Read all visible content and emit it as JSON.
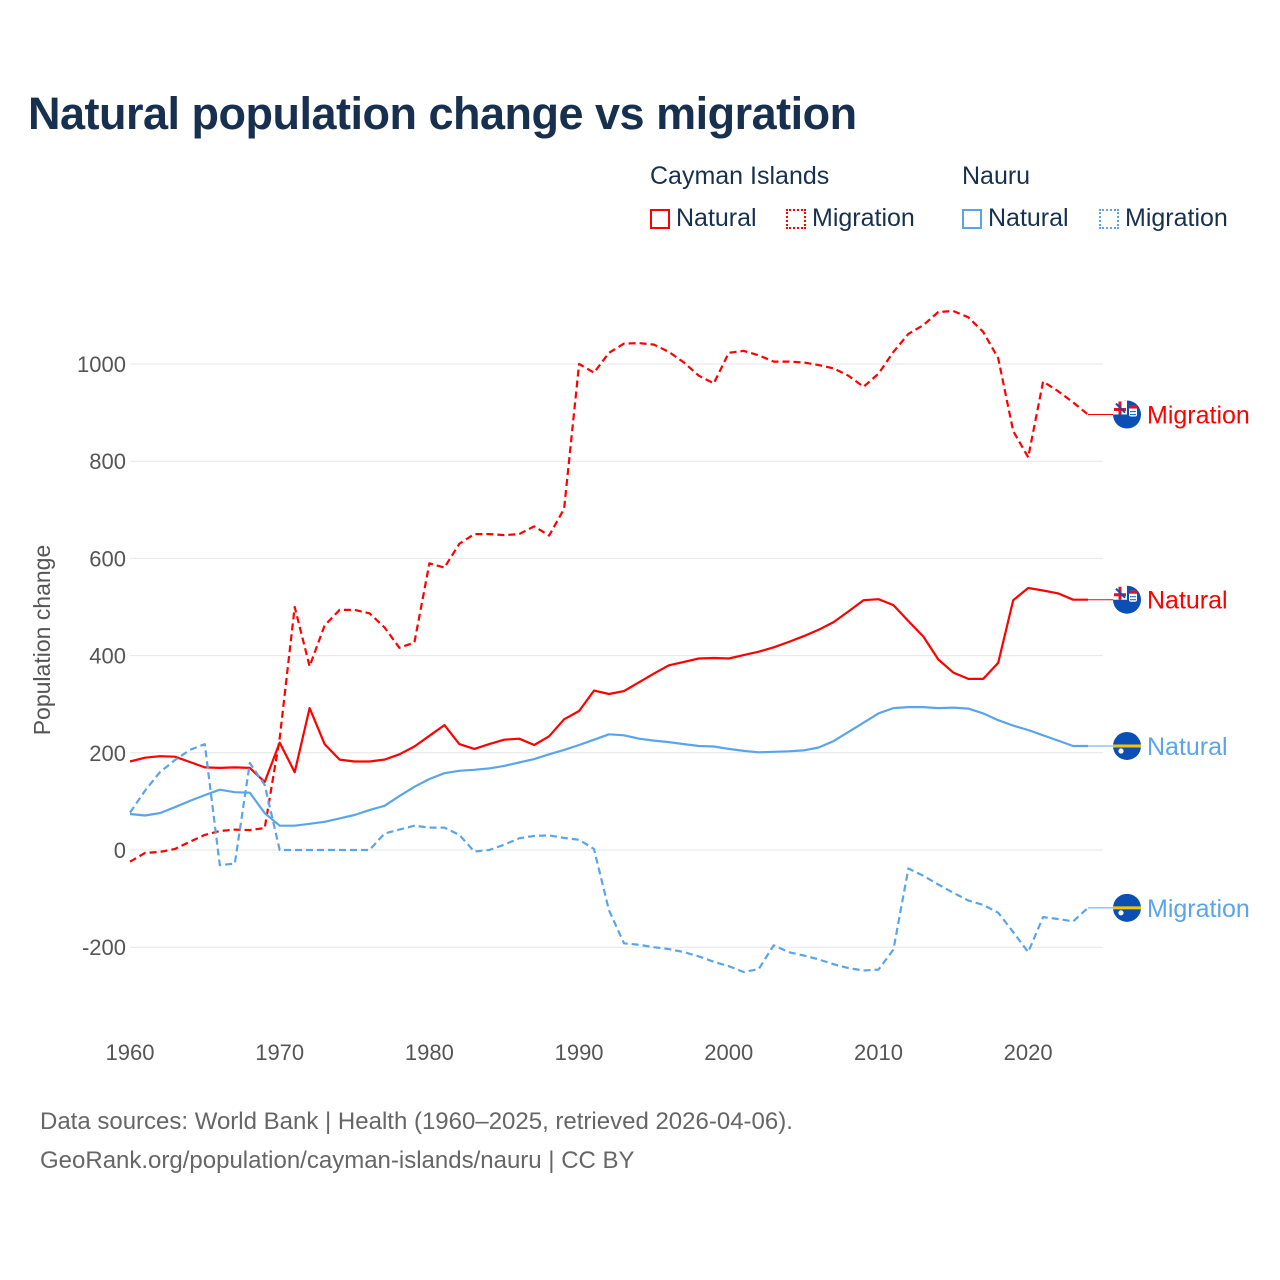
{
  "title": "Natural population change vs migration",
  "legend": {
    "groups": [
      {
        "country": "Cayman Islands",
        "items": [
          "Natural",
          "Migration"
        ],
        "color": "#ff0000"
      },
      {
        "country": "Nauru",
        "items": [
          "Natural",
          "Migration"
        ],
        "color": "#5aa5ea"
      }
    ]
  },
  "footer": {
    "line1": "Data sources: World Bank | Health (1960–2025, retrieved 2026-04-06).",
    "line2": "GeoRank.org/population/cayman-islands/nauru | CC BY"
  },
  "chart_data": {
    "type": "line",
    "title": "Natural population change vs migration",
    "xlabel": "",
    "ylabel": "Population change",
    "xlim": [
      1960,
      2025
    ],
    "ylim": [
      -300,
      1150
    ],
    "x_ticks": [
      1960,
      1970,
      1980,
      1990,
      2000,
      2010,
      2020
    ],
    "y_ticks": [
      -200,
      0,
      200,
      400,
      600,
      800,
      1000
    ],
    "grid": true,
    "x_start": 1960,
    "series": [
      {
        "name": "Cayman Islands Natural",
        "label": "Natural",
        "flag": "cayman-islands-flag-icon",
        "color": "#ff0000",
        "dashed": false,
        "values": [
          182,
          190,
          193,
          192,
          181,
          170,
          169,
          170,
          169,
          140,
          221,
          160,
          292,
          218,
          186,
          182,
          182,
          186,
          197,
          213,
          235,
          257,
          218,
          208,
          218,
          227,
          229,
          216,
          234,
          269,
          286,
          328,
          321,
          327,
          345,
          363,
          380,
          387,
          394,
          395,
          394,
          401,
          408,
          417,
          428,
          440,
          453,
          469,
          491,
          514,
          516,
          504,
          471,
          439,
          392,
          365,
          352,
          352,
          385,
          514,
          539,
          534,
          528,
          515,
          515
        ]
      },
      {
        "name": "Cayman Islands Migration",
        "label": "Migration",
        "flag": "cayman-islands-flag-icon",
        "color": "#ff0000",
        "dashed": true,
        "values": [
          -24,
          -6,
          -4,
          2,
          17,
          31,
          39,
          42,
          41,
          45,
          230,
          500,
          378,
          462,
          494,
          494,
          487,
          458,
          416,
          427,
          590,
          581,
          630,
          650,
          650,
          648,
          650,
          666,
          647,
          702,
          1000,
          982,
          1023,
          1042,
          1043,
          1040,
          1025,
          1003,
          976,
          960,
          1023,
          1027,
          1018,
          1005,
          1005,
          1003,
          998,
          991,
          976,
          953,
          980,
          1025,
          1062,
          1080,
          1107,
          1109,
          1096,
          1066,
          1012,
          862,
          808,
          964,
          944,
          921,
          896
        ]
      },
      {
        "name": "Nauru Natural",
        "label": "Natural",
        "flag": "nauru-flag-icon",
        "color": "#5aa5ea",
        "dashed": false,
        "values": [
          74,
          71,
          76,
          88,
          101,
          113,
          124,
          119,
          118,
          76,
          50,
          50,
          54,
          58,
          65,
          72,
          82,
          91,
          111,
          130,
          146,
          158,
          163,
          165,
          168,
          173,
          180,
          187,
          197,
          206,
          216,
          227,
          238,
          236,
          229,
          225,
          222,
          218,
          214,
          213,
          208,
          204,
          201,
          202,
          203,
          205,
          211,
          224,
          243,
          262,
          281,
          292,
          294,
          294,
          292,
          293,
          291,
          281,
          267,
          256,
          247,
          236,
          225,
          214,
          214
        ]
      },
      {
        "name": "Nauru Migration",
        "label": "Migration",
        "flag": "nauru-flag-icon",
        "color": "#5aa5ea",
        "dashed": true,
        "values": [
          77,
          122,
          160,
          185,
          206,
          218,
          -31,
          -28,
          179,
          134,
          0,
          0,
          0,
          0,
          0,
          0,
          0,
          34,
          42,
          50,
          46,
          46,
          31,
          -3,
          0,
          11,
          24,
          29,
          30,
          25,
          21,
          2,
          -124,
          -192,
          -195,
          -200,
          -204,
          -210,
          -219,
          -230,
          -239,
          -251,
          -245,
          -196,
          -210,
          -217,
          -225,
          -235,
          -243,
          -248,
          -246,
          -205,
          -38,
          -53,
          -71,
          -88,
          -104,
          -113,
          -129,
          -169,
          -210,
          -138,
          -142,
          -147,
          -119
        ]
      }
    ]
  }
}
